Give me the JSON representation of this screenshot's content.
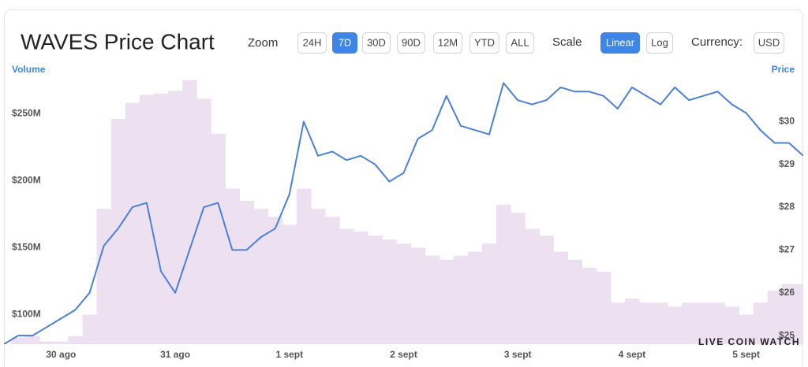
{
  "chart_data": {
    "type": "line",
    "title": "WAVES Price Chart",
    "categories": [
      null,
      null,
      null,
      null,
      "30 ago",
      null,
      null,
      null,
      null,
      null,
      null,
      null,
      "31 ago",
      null,
      null,
      null,
      null,
      null,
      null,
      null,
      "1 sept",
      null,
      null,
      null,
      null,
      null,
      null,
      null,
      "2 sept",
      null,
      null,
      null,
      null,
      null,
      null,
      null,
      "3 sept",
      null,
      null,
      null,
      null,
      null,
      null,
      null,
      "4 sept",
      null,
      null,
      null,
      null,
      null,
      null,
      null,
      "5 sept",
      null,
      null,
      null,
      null
    ],
    "series": [
      {
        "name": "Volume",
        "type": "bar",
        "color": "#ede1f1",
        "values": [
          78,
          83,
          84,
          80,
          80,
          84,
          100,
          179,
          246,
          258,
          264,
          265,
          267,
          275,
          261,
          235,
          194,
          185,
          179,
          173,
          167,
          194,
          179,
          173,
          164,
          162,
          159,
          156,
          153,
          150,
          144,
          141,
          144,
          147,
          153,
          182,
          176,
          164,
          159,
          147,
          141,
          135,
          132,
          109,
          112,
          109,
          109,
          106,
          109,
          109,
          109,
          106,
          100,
          109,
          118,
          123,
          123
        ]
      },
      {
        "name": "Price",
        "type": "line",
        "axis": "y2",
        "color": "#4a80d8",
        "values": [
          24.8,
          25.0,
          25.0,
          25.2,
          25.4,
          25.6,
          26.0,
          27.1,
          27.5,
          28.0,
          28.1,
          26.5,
          26.0,
          27.0,
          28.0,
          28.1,
          27.0,
          27.0,
          27.3,
          27.5,
          28.3,
          30.0,
          29.2,
          29.3,
          29.1,
          29.2,
          29.0,
          28.6,
          28.8,
          29.6,
          29.8,
          30.6,
          29.9,
          29.8,
          29.7,
          30.9,
          30.5,
          30.4,
          30.5,
          30.8,
          30.7,
          30.7,
          30.6,
          30.3,
          30.8,
          30.6,
          30.4,
          30.8,
          30.5,
          30.6,
          30.7,
          30.4,
          30.2,
          29.8,
          29.5,
          29.5,
          29.2
        ]
      }
    ],
    "ylim": [
      78,
      276
    ],
    "yticks": [
      {
        "value": 100,
        "label": "$100M"
      },
      {
        "value": 150,
        "label": "$150M"
      },
      {
        "value": 200,
        "label": "$200M"
      },
      {
        "value": 250,
        "label": "$250M"
      }
    ],
    "y2lim": [
      24.8,
      31
    ],
    "y2ticks": [
      {
        "value": 25,
        "label": "$25"
      },
      {
        "value": 26,
        "label": "$26"
      },
      {
        "value": 27,
        "label": "$27"
      },
      {
        "value": 28,
        "label": "$28"
      },
      {
        "value": 29,
        "label": "$29"
      },
      {
        "value": 30,
        "label": "$30"
      }
    ],
    "grid": false,
    "watermark": "LIVE COIN WATCH"
  },
  "controls": {
    "zoom": {
      "label": "Zoom",
      "buttons": [
        {
          "label": "24H",
          "active": false
        },
        {
          "label": "7D",
          "active": true
        },
        {
          "label": "30D",
          "active": false
        },
        {
          "label": "90D",
          "active": false
        },
        {
          "label": "12M",
          "active": false
        },
        {
          "label": "YTD",
          "active": false
        },
        {
          "label": "ALL",
          "active": false
        }
      ]
    },
    "scale": {
      "label": "Scale",
      "buttons": [
        {
          "label": "Linear",
          "active": true
        },
        {
          "label": "Log",
          "active": false
        }
      ]
    },
    "currency": {
      "label": "Currency:",
      "buttons": [
        {
          "label": "USD",
          "active": false
        }
      ]
    }
  }
}
